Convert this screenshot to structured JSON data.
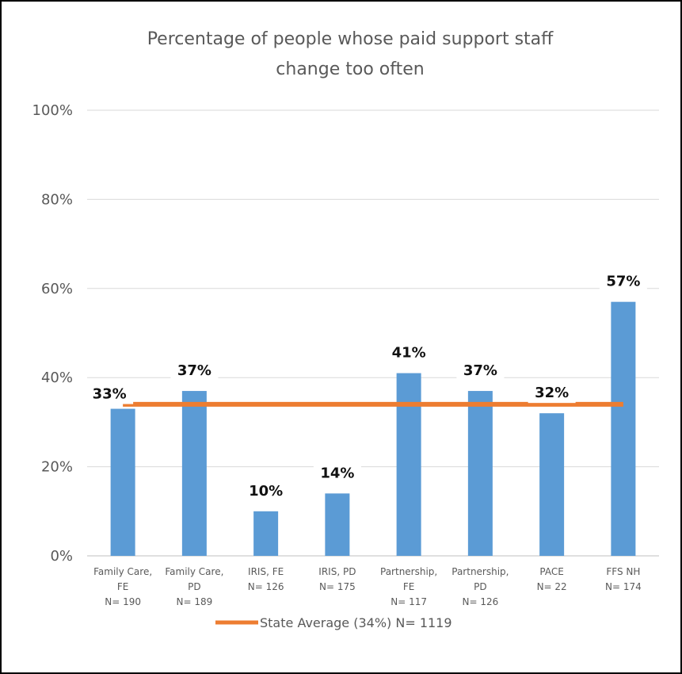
{
  "chart_data": {
    "type": "bar",
    "title": "Percentage of people whose paid support staff change too often",
    "title_lines": [
      "Percentage of people whose paid support staff",
      "change too often"
    ],
    "categories": [
      "Family Care, FE N= 190",
      "Family Care, PD N= 189",
      "IRIS, FE N= 126",
      "IRIS, PD N= 175",
      "Partnership, FE N= 117",
      "Partnership, PD N= 126",
      "PACE N= 22",
      "FFS NH N= 174"
    ],
    "category_lines": [
      [
        "Family Care,",
        "FE",
        "N= 190"
      ],
      [
        "Family Care,",
        "PD",
        "N= 189"
      ],
      [
        "IRIS, FE",
        "N= 126"
      ],
      [
        "IRIS, PD",
        "N= 175"
      ],
      [
        "Partnership,",
        "FE",
        "N= 117"
      ],
      [
        "Partnership,",
        "PD",
        "N= 126"
      ],
      [
        "PACE",
        "N= 22"
      ],
      [
        "FFS NH",
        "N= 174"
      ]
    ],
    "values": [
      33,
      37,
      10,
      14,
      41,
      37,
      32,
      57
    ],
    "data_labels": [
      "33%",
      "37%",
      "10%",
      "14%",
      "41%",
      "37%",
      "32%",
      "57%"
    ],
    "reference_line": {
      "name": "State Average (34%) N= 1119",
      "value": 34
    },
    "yticks": [
      0,
      20,
      40,
      60,
      80,
      100
    ],
    "ytick_labels": [
      "0%",
      "20%",
      "40%",
      "60%",
      "80%",
      "100%"
    ],
    "ylim": [
      0,
      100
    ],
    "grid": true,
    "legend_position": "bottom",
    "colors": {
      "bar": "#5B9BD5",
      "line": "#ED7D31",
      "grid": "#D9D9D9",
      "text": "#595959"
    }
  }
}
